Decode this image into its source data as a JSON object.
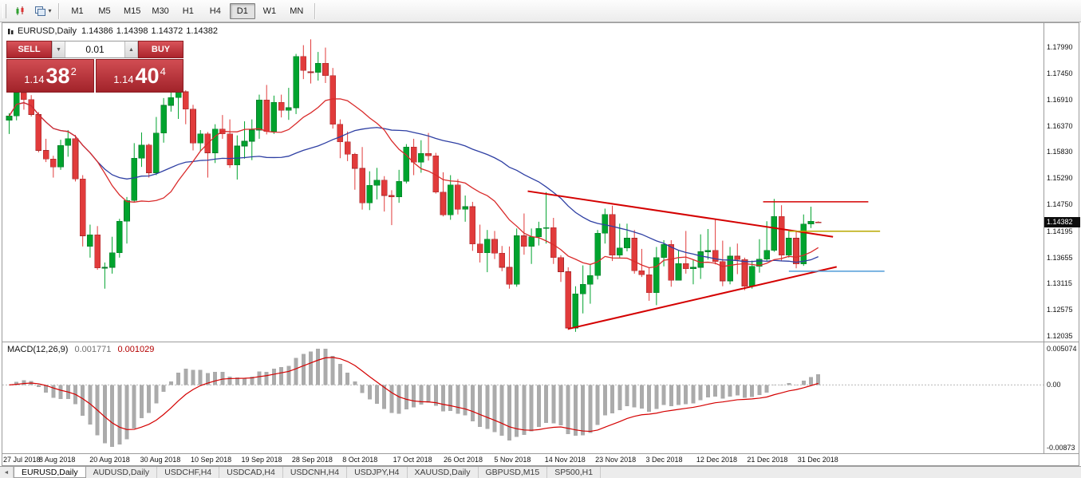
{
  "toolbar": {
    "timeframes": [
      "M1",
      "M5",
      "M15",
      "M30",
      "H1",
      "H4",
      "D1",
      "W1",
      "MN"
    ],
    "active_timeframe": "D1"
  },
  "icons": {
    "caret_down": "▾",
    "spinner_down": "▼",
    "spinner_up": "▲",
    "tab_scroll_left": "◄"
  },
  "chart_header": {
    "symbol": "EURUSD,Daily",
    "open": "1.14386",
    "high": "1.14398",
    "low": "1.14372",
    "close": "1.14382"
  },
  "trade_panel": {
    "sell_label": "SELL",
    "buy_label": "BUY",
    "lot_value": "0.01",
    "sell_price": {
      "prefix": "1.14",
      "pips": "38",
      "pipette": "2"
    },
    "buy_price": {
      "prefix": "1.14",
      "pips": "40",
      "pipette": "4"
    }
  },
  "tabs": [
    "EURUSD,Daily",
    "AUDUSD,Daily",
    "USDCHF,H4",
    "USDCAD,H4",
    "USDCNH,H4",
    "USDJPY,H4",
    "XAUUSD,Daily",
    "GBPUSD,M15",
    "SP500,H1"
  ],
  "active_tab": "EURUSD,Daily",
  "colors": {
    "bull": "#00a32e",
    "bull_dark": "#067a28",
    "bear": "#e13b3b",
    "bear_dark": "#a52a2c",
    "ma_fast": "#d92b2b",
    "ma_slow": "#2e3fa3",
    "macd_bar": "#ababab",
    "macd_signal": "#d40000",
    "trend_red": "#d40000",
    "line_yellow": "#b9a800",
    "line_blue": "#4f9bd8",
    "panel_red": "#c2333a"
  },
  "chart_data": {
    "type": "candlestick",
    "symbol": "EURUSD",
    "period": "Daily",
    "ylim": [
      1.1192,
      1.18484
    ],
    "y_ticks": [
      "1.17990",
      "1.17450",
      "1.16910",
      "1.16370",
      "1.15830",
      "1.15290",
      "1.14750",
      "1.14195",
      "1.13655",
      "1.13115",
      "1.12575",
      "1.12035"
    ],
    "current_price": "1.14382",
    "x_labels": [
      "27 Jul 2018",
      "8 Aug 2018",
      "20 Aug 2018",
      "30 Aug 2018",
      "10 Sep 2018",
      "19 Sep 2018",
      "28 Sep 2018",
      "8 Oct 2018",
      "17 Oct 2018",
      "26 Oct 2018",
      "5 Nov 2018",
      "14 Nov 2018",
      "23 Nov 2018",
      "3 Dec 2018",
      "12 Dec 2018",
      "21 Dec 2018",
      "31 Dec 2018"
    ],
    "candles": [
      [
        1.1648,
        1.1663,
        1.162,
        1.1657
      ],
      [
        1.1657,
        1.1719,
        1.1648,
        1.1705
      ],
      [
        1.1705,
        1.1713,
        1.167,
        1.1691
      ],
      [
        1.1691,
        1.17,
        1.1656,
        1.166
      ],
      [
        1.166,
        1.1665,
        1.1582,
        1.1586
      ],
      [
        1.1586,
        1.161,
        1.1562,
        1.1568
      ],
      [
        1.1568,
        1.1575,
        1.153,
        1.1552
      ],
      [
        1.1552,
        1.1608,
        1.1546,
        1.1596
      ],
      [
        1.1596,
        1.1628,
        1.1573,
        1.161
      ],
      [
        1.161,
        1.1618,
        1.1522,
        1.1527
      ],
      [
        1.1527,
        1.1535,
        1.1388,
        1.141
      ],
      [
        1.1388,
        1.1433,
        1.1365,
        1.1412
      ],
      [
        1.1412,
        1.143,
        1.134,
        1.1344
      ],
      [
        1.1344,
        1.1355,
        1.1301,
        1.1345
      ],
      [
        1.1345,
        1.1408,
        1.1332,
        1.1375
      ],
      [
        1.1375,
        1.1445,
        1.1365,
        1.144
      ],
      [
        1.144,
        1.149,
        1.1394,
        1.1483
      ],
      [
        1.1483,
        1.1601,
        1.148,
        1.157
      ],
      [
        1.157,
        1.1623,
        1.1552,
        1.1597
      ],
      [
        1.1597,
        1.16,
        1.153,
        1.154
      ],
      [
        1.154,
        1.1655,
        1.1535,
        1.1622
      ],
      [
        1.1622,
        1.1694,
        1.1602,
        1.1679
      ],
      [
        1.1679,
        1.1733,
        1.1666,
        1.1695
      ],
      [
        1.1695,
        1.1717,
        1.1651,
        1.1707
      ],
      [
        1.1707,
        1.171,
        1.164,
        1.1671
      ],
      [
        1.1671,
        1.168,
        1.1586,
        1.1601
      ],
      [
        1.1601,
        1.1628,
        1.1584,
        1.162
      ],
      [
        1.162,
        1.1624,
        1.153,
        1.1581
      ],
      [
        1.1581,
        1.164,
        1.156,
        1.163
      ],
      [
        1.163,
        1.1659,
        1.161,
        1.162
      ],
      [
        1.162,
        1.165,
        1.155,
        1.1556
      ],
      [
        1.1556,
        1.1617,
        1.1526,
        1.1595
      ],
      [
        1.1595,
        1.1646,
        1.1569,
        1.1605
      ],
      [
        1.1605,
        1.165,
        1.1566,
        1.1628
      ],
      [
        1.1628,
        1.1701,
        1.161,
        1.169
      ],
      [
        1.169,
        1.1721,
        1.1619,
        1.1625
      ],
      [
        1.1625,
        1.1699,
        1.162,
        1.1685
      ],
      [
        1.1685,
        1.1701,
        1.1654,
        1.1669
      ],
      [
        1.1669,
        1.1715,
        1.1649,
        1.1674
      ],
      [
        1.1674,
        1.1785,
        1.1661,
        1.178
      ],
      [
        1.178,
        1.1803,
        1.1733,
        1.1751
      ],
      [
        1.1748,
        1.1815,
        1.1724,
        1.1747
      ],
      [
        1.1747,
        1.1789,
        1.173,
        1.1766
      ],
      [
        1.1766,
        1.1798,
        1.1725,
        1.174
      ],
      [
        1.174,
        1.1756,
        1.1631,
        1.164
      ],
      [
        1.164,
        1.165,
        1.157,
        1.1604
      ],
      [
        1.1604,
        1.1625,
        1.1564,
        1.1578
      ],
      [
        1.1578,
        1.1581,
        1.1505,
        1.1549
      ],
      [
        1.1549,
        1.1593,
        1.1464,
        1.1478
      ],
      [
        1.1478,
        1.1543,
        1.1463,
        1.1514
      ],
      [
        1.1514,
        1.155,
        1.1485,
        1.1525
      ],
      [
        1.1525,
        1.1533,
        1.146,
        1.1493
      ],
      [
        1.1493,
        1.1504,
        1.1432,
        1.149
      ],
      [
        1.149,
        1.1546,
        1.1478,
        1.1522
      ],
      [
        1.1522,
        1.1599,
        1.1518,
        1.1593
      ],
      [
        1.1593,
        1.161,
        1.1535,
        1.1562
      ],
      [
        1.1562,
        1.1607,
        1.154,
        1.158
      ],
      [
        1.158,
        1.1622,
        1.1565,
        1.1575
      ],
      [
        1.1575,
        1.1581,
        1.1497,
        1.15
      ],
      [
        1.15,
        1.1541,
        1.145,
        1.1453
      ],
      [
        1.1453,
        1.1535,
        1.1443,
        1.1515
      ],
      [
        1.1515,
        1.1527,
        1.1454,
        1.1465
      ],
      [
        1.1465,
        1.1493,
        1.1439,
        1.147
      ],
      [
        1.147,
        1.148,
        1.1379,
        1.1393
      ],
      [
        1.1393,
        1.1433,
        1.1355,
        1.1375
      ],
      [
        1.1375,
        1.1422,
        1.1335,
        1.1403
      ],
      [
        1.1403,
        1.142,
        1.1362,
        1.1374
      ],
      [
        1.1374,
        1.1389,
        1.1337,
        1.1345
      ],
      [
        1.1345,
        1.1388,
        1.1301,
        1.131
      ],
      [
        1.131,
        1.1425,
        1.1305,
        1.141
      ],
      [
        1.141,
        1.1456,
        1.1371,
        1.1388
      ],
      [
        1.1388,
        1.1425,
        1.1352,
        1.1408
      ],
      [
        1.1408,
        1.1439,
        1.139,
        1.1425
      ],
      [
        1.1425,
        1.15,
        1.1394,
        1.1427
      ],
      [
        1.1427,
        1.1447,
        1.1352,
        1.1365
      ],
      [
        1.1365,
        1.137,
        1.1315,
        1.1336
      ],
      [
        1.1336,
        1.1345,
        1.1216,
        1.122
      ],
      [
        1.122,
        1.1306,
        1.1212,
        1.129
      ],
      [
        1.129,
        1.1349,
        1.125,
        1.131
      ],
      [
        1.131,
        1.135,
        1.127,
        1.1328
      ],
      [
        1.1328,
        1.1422,
        1.132,
        1.1415
      ],
      [
        1.1415,
        1.1466,
        1.1394,
        1.1454
      ],
      [
        1.1454,
        1.1472,
        1.1358,
        1.137
      ],
      [
        1.137,
        1.1435,
        1.1365,
        1.1385
      ],
      [
        1.1385,
        1.1435,
        1.1378,
        1.1405
      ],
      [
        1.1405,
        1.1422,
        1.1332,
        1.1338
      ],
      [
        1.1338,
        1.1383,
        1.1325,
        1.133
      ],
      [
        1.133,
        1.1344,
        1.1276,
        1.1293
      ],
      [
        1.1293,
        1.1387,
        1.1267,
        1.1365
      ],
      [
        1.1365,
        1.1401,
        1.1347,
        1.1392
      ],
      [
        1.1392,
        1.1401,
        1.1305,
        1.1318
      ],
      [
        1.1318,
        1.138,
        1.1318,
        1.1353
      ],
      [
        1.1353,
        1.142,
        1.1332,
        1.1342
      ],
      [
        1.1342,
        1.1361,
        1.131,
        1.1345
      ],
      [
        1.1345,
        1.1413,
        1.1321,
        1.1377
      ],
      [
        1.1377,
        1.1424,
        1.1361,
        1.138
      ],
      [
        1.138,
        1.1443,
        1.1351,
        1.1357
      ],
      [
        1.1357,
        1.14,
        1.1306,
        1.1317
      ],
      [
        1.1317,
        1.1387,
        1.131,
        1.1368
      ],
      [
        1.1368,
        1.1394,
        1.1331,
        1.1361
      ],
      [
        1.1361,
        1.1365,
        1.1298,
        1.1306
      ],
      [
        1.1306,
        1.1359,
        1.1301,
        1.1347
      ],
      [
        1.1347,
        1.1403,
        1.1334,
        1.1362
      ],
      [
        1.1362,
        1.144,
        1.1357,
        1.138
      ],
      [
        1.138,
        1.1486,
        1.1377,
        1.145
      ],
      [
        1.145,
        1.1473,
        1.1358,
        1.137
      ],
      [
        1.137,
        1.142,
        1.1365,
        1.1405
      ],
      [
        1.1405,
        1.1421,
        1.1343,
        1.1352
      ],
      [
        1.1352,
        1.1454,
        1.1348,
        1.1434
      ],
      [
        1.1434,
        1.147,
        1.1426,
        1.144
      ],
      [
        1.14386,
        1.14398,
        1.14372,
        1.14382
      ]
    ],
    "overlays": {
      "ma_fast": {
        "type": "sma",
        "period": 13,
        "color": "#d92b2b"
      },
      "ma_slow": {
        "type": "sma",
        "period": 34,
        "color": "#2e3fa3"
      }
    },
    "objects": [
      {
        "name": "triangle-upper-trendline",
        "i1": 70.5,
        "p1": 1.1502,
        "i2": 112,
        "p2": 1.1408,
        "color": "#d40000",
        "width": 2
      },
      {
        "name": "triangle-lower-trendline",
        "i1": 76,
        "p1": 1.1218,
        "i2": 112.5,
        "p2": 1.1346,
        "color": "#d40000",
        "width": 2
      },
      {
        "name": "resistance-line",
        "i1": 102.5,
        "p1": 1.148,
        "i2": 116.8,
        "p2": 1.148,
        "color": "#d40000",
        "width": 1.5
      },
      {
        "name": "yellow-horizontal-line",
        "i1": 106,
        "p1": 1.14195,
        "i2": 118.4,
        "p2": 1.14195,
        "color": "#b9a800",
        "width": 1.5
      },
      {
        "name": "blue-horizontal-line",
        "i1": 106,
        "p1": 1.1337,
        "i2": 119,
        "p2": 1.1337,
        "color": "#4f9bd8",
        "width": 1.5
      }
    ],
    "macd": {
      "label": "MACD(12,26,9)",
      "params": [
        12,
        26,
        9
      ],
      "main": "0.001771",
      "signal": "0.001029",
      "ticks": {
        "max": "0.005074",
        "zero": "0.00",
        "min": "-0.00873"
      },
      "bar_color": "#ababab",
      "signal_color": "#d40000"
    }
  }
}
